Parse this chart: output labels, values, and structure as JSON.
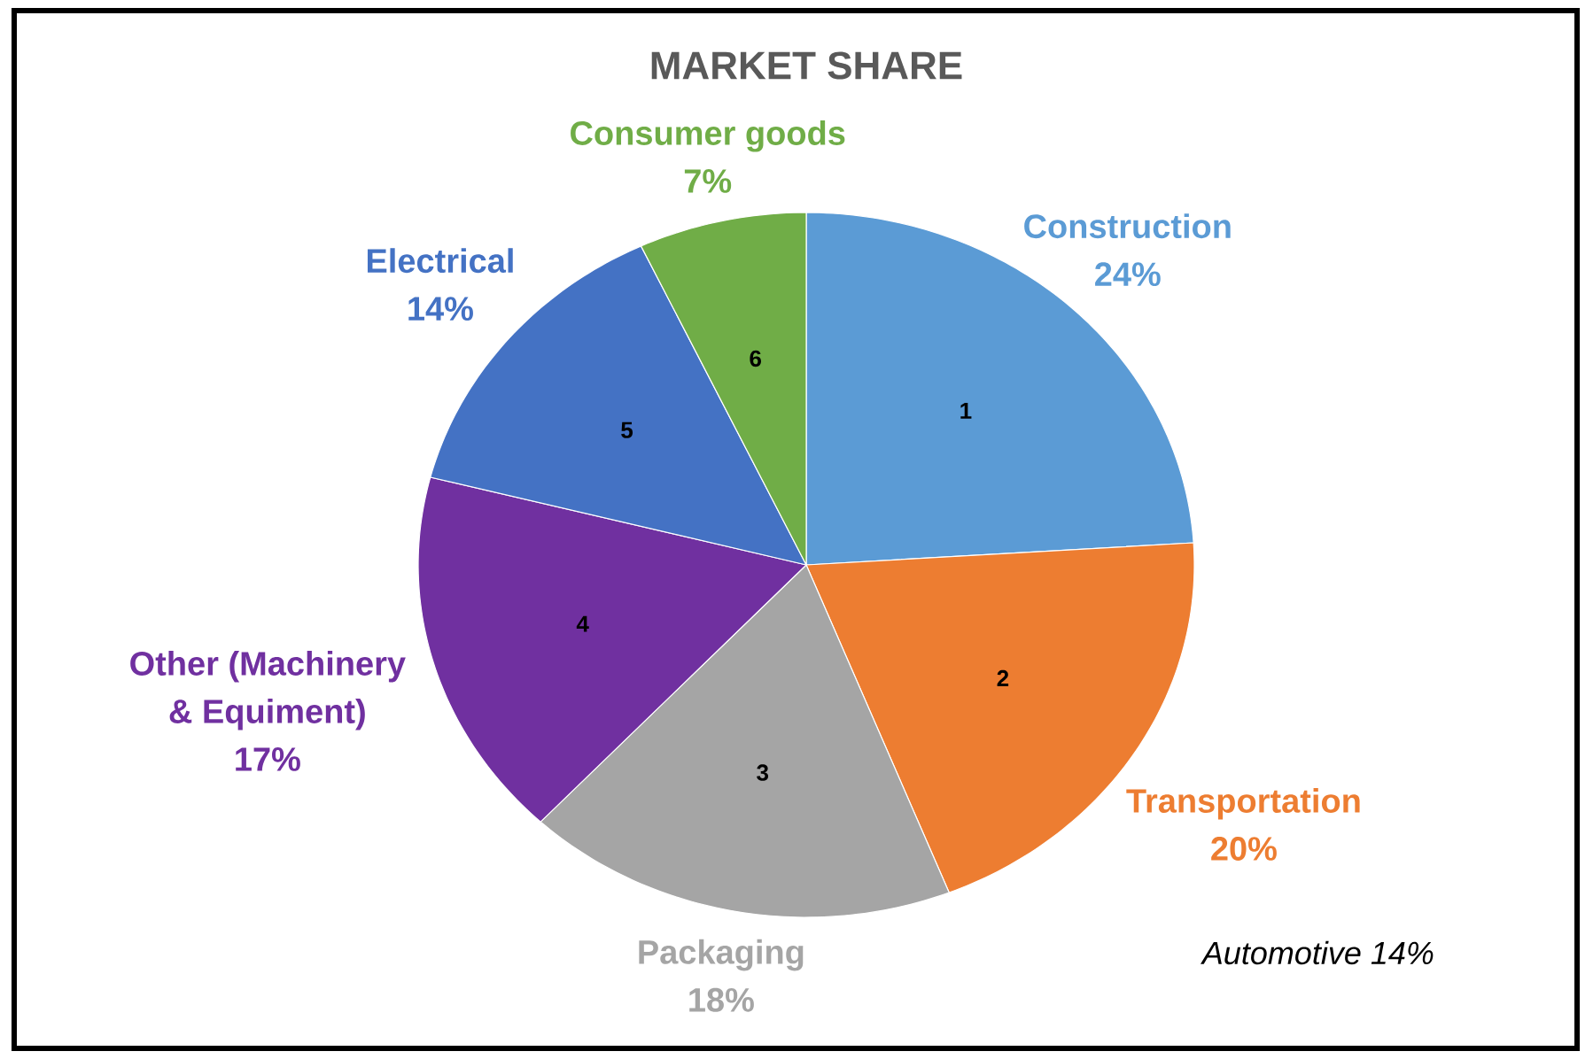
{
  "chart_data": {
    "type": "pie",
    "title": "MARKET SHARE",
    "categories": [
      "Construction",
      "Transportation",
      "Packaging",
      "Other (Machinery & Equiment)",
      "Electrical",
      "Consumer goods"
    ],
    "values": [
      24,
      20,
      18,
      17,
      14,
      7
    ],
    "value_labels": [
      "24%",
      "20%",
      "18%",
      "17%",
      "14%",
      "7%"
    ],
    "colors": [
      "#5b9bd5",
      "#ed7d31",
      "#a5a5a5",
      "#7030a0",
      "#4472c4",
      "#70ad47"
    ],
    "annotations": [
      "1",
      "2",
      "3",
      "4",
      "5",
      "6",
      "*Automotive 14%*"
    ]
  }
}
